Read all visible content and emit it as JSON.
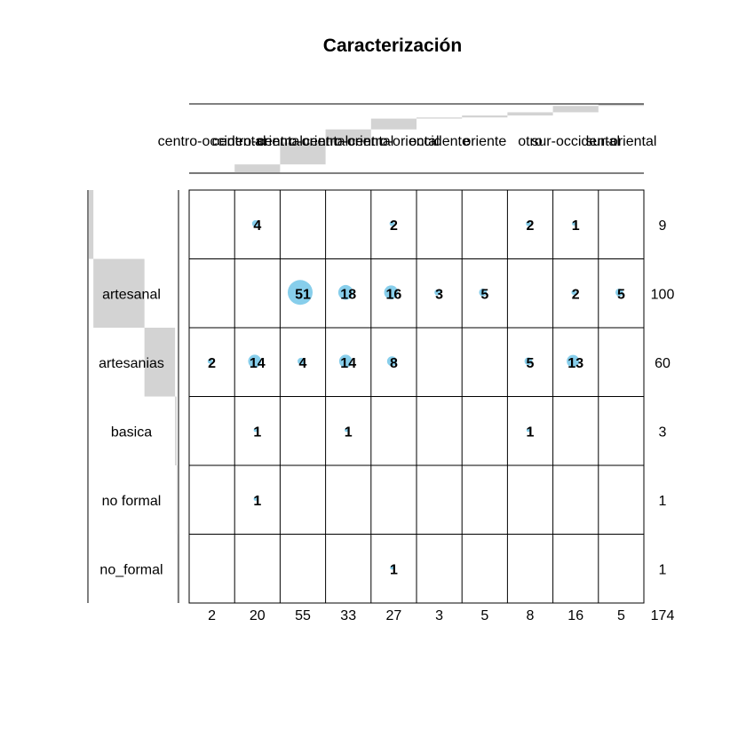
{
  "chart_data": {
    "type": "table",
    "title": "Caracterización",
    "columns": [
      "centro-occidental",
      "centro-oriental",
      "centro-oriental",
      "centro-oriental",
      "centro-oriental",
      "occidente",
      "oriente",
      "otro",
      "sur-occidental",
      "sur-oriental"
    ],
    "rows": [
      "",
      "artesanal",
      "artesanias",
      "basica",
      "no formal",
      "no_formal"
    ],
    "cells": [
      [
        null,
        4,
        null,
        null,
        2,
        null,
        null,
        2,
        1,
        null
      ],
      [
        null,
        null,
        51,
        18,
        16,
        3,
        5,
        null,
        2,
        5
      ],
      [
        2,
        14,
        4,
        14,
        8,
        null,
        null,
        5,
        13,
        null
      ],
      [
        null,
        1,
        null,
        1,
        null,
        null,
        null,
        1,
        null,
        null
      ],
      [
        null,
        1,
        null,
        null,
        null,
        null,
        null,
        null,
        null,
        null
      ],
      [
        null,
        null,
        null,
        null,
        1,
        null,
        null,
        null,
        null,
        null
      ]
    ],
    "row_totals": [
      9,
      100,
      60,
      3,
      1,
      1
    ],
    "column_totals": [
      2,
      20,
      55,
      33,
      27,
      3,
      5,
      8,
      16,
      5
    ],
    "grand_total": 174,
    "colors": {
      "bubble": "#87ceeb",
      "marginal_bar": "#d3d3d3",
      "grid": "#000000"
    }
  }
}
